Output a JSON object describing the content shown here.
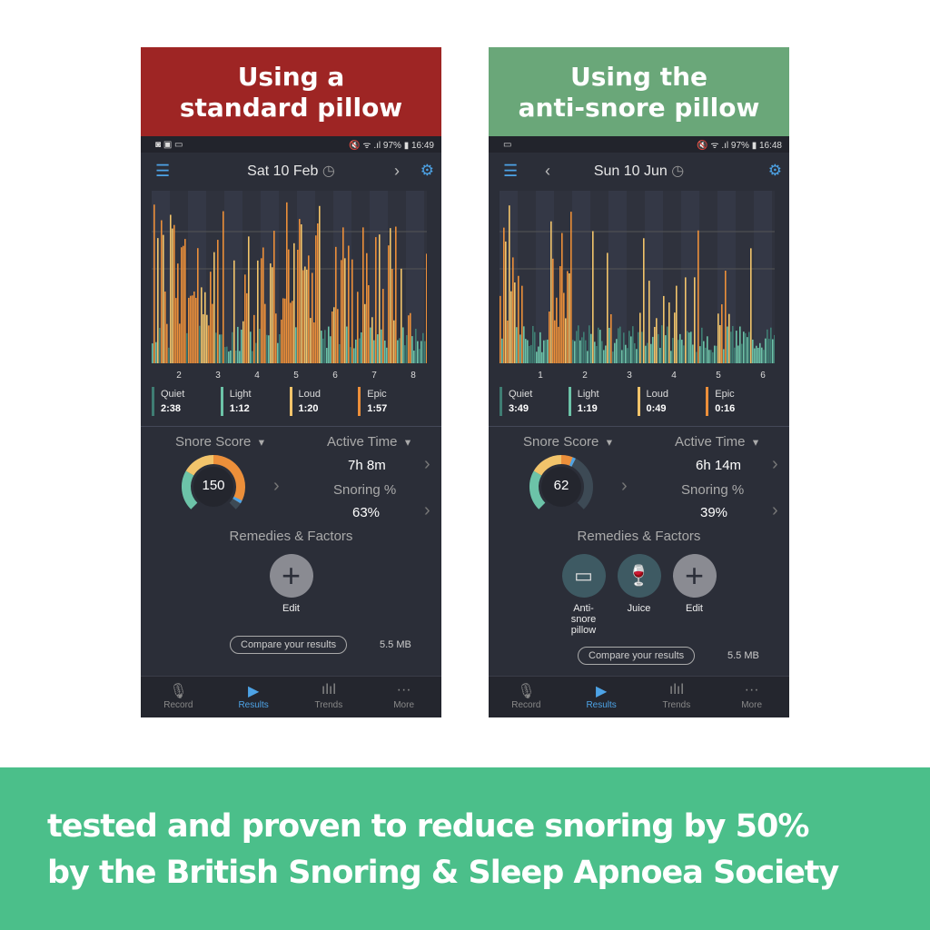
{
  "colors": {
    "quiet": "#3f7d73",
    "light": "#6cc3a8",
    "loud": "#f2c46b",
    "epic": "#ec8f3a",
    "accent": "#4da3e6"
  },
  "phones": [
    {
      "banner": "Using a\nstandard pillow",
      "banner_color": "#9e2524",
      "status_icons": "◙ ▣ ▭",
      "status_right": "🔇 ᯤ .ıl 97% ▮ 16:49",
      "date": "Sat 10 Feb",
      "has_prev": false,
      "has_next": true,
      "ticks": [
        "2",
        "3",
        "4",
        "5",
        "6",
        "7",
        "8"
      ],
      "legend": [
        {
          "label": "Quiet",
          "value": "2:38"
        },
        {
          "label": "Light",
          "value": "1:12"
        },
        {
          "label": "Loud",
          "value": "1:20"
        },
        {
          "label": "Epic",
          "value": "1:57"
        }
      ],
      "snore_score_label": "Snore Score",
      "snore_score": "150",
      "snore_score_fraction": 0.95,
      "active_time_label": "Active Time",
      "active_time": "7h 8m",
      "snoring_label": "Snoring %",
      "snoring": "63%",
      "remedies_label": "Remedies & Factors",
      "remedies": [
        {
          "label": "Edit",
          "icon": "plus-icon"
        }
      ],
      "compare": "Compare your results",
      "size": "5.5 MB"
    },
    {
      "banner": "Using the\nanti-snore pillow",
      "banner_color": "#6aa779",
      "status_icons": "▭",
      "status_right": "🔇 ᯤ .ıl 97% ▮ 16:48",
      "date": "Sun 10 Jun",
      "has_prev": true,
      "has_next": false,
      "ticks": [
        "1",
        "2",
        "3",
        "4",
        "5",
        "6"
      ],
      "legend": [
        {
          "label": "Quiet",
          "value": "3:49"
        },
        {
          "label": "Light",
          "value": "1:19"
        },
        {
          "label": "Loud",
          "value": "0:49"
        },
        {
          "label": "Epic",
          "value": "0:16"
        }
      ],
      "snore_score_label": "Snore Score",
      "snore_score": "62",
      "snore_score_fraction": 0.6,
      "active_time_label": "Active Time",
      "active_time": "6h 14m",
      "snoring_label": "Snoring %",
      "snoring": "39%",
      "remedies_label": "Remedies & Factors",
      "remedies": [
        {
          "label": "Anti-snore pillow",
          "icon": "pillow-icon"
        },
        {
          "label": "Juice",
          "icon": "wine-glass-icon"
        },
        {
          "label": "Edit",
          "icon": "plus-icon"
        }
      ],
      "compare": "Compare your results",
      "size": "5.5 MB"
    }
  ],
  "tabs": [
    {
      "label": "Record",
      "icon": "microphone-icon"
    },
    {
      "label": "Results",
      "icon": "play-icon"
    },
    {
      "label": "Trends",
      "icon": "bar-chart-icon"
    },
    {
      "label": "More",
      "icon": "more-icon"
    }
  ],
  "footer": {
    "line1": "tested and proven to reduce snoring by 50%",
    "line2": "by the British Snoring & Sleep Apnoea Society"
  }
}
